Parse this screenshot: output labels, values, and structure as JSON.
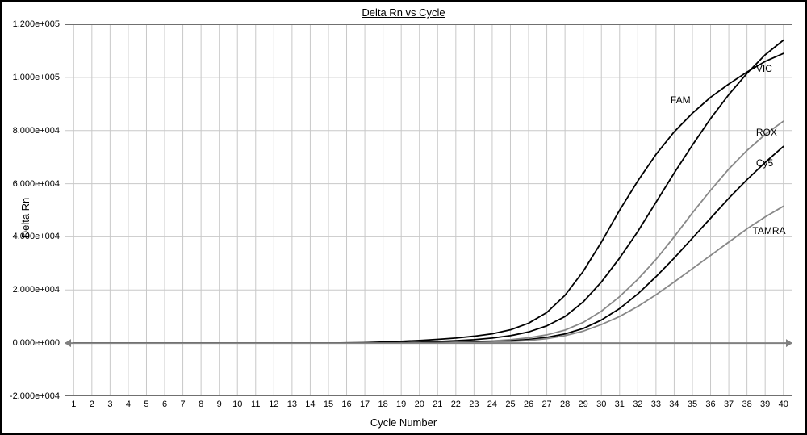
{
  "chart": {
    "type": "line",
    "title": "Delta Rn vs Cycle",
    "xlabel": "Cycle Number",
    "ylabel": "Delta Rn",
    "background_color": "#ffffff",
    "frame_color": "#000000",
    "frame_width": 2,
    "plot_border_color": "#707070",
    "grid_color": "#c8c8c8",
    "grid_width": 1,
    "zero_line_color": "#808080",
    "zero_line_width": 2,
    "tick_label_fontsize": 11,
    "axis_label_fontsize": 13,
    "title_fontsize": 13,
    "xlim": [
      0.5,
      40.5
    ],
    "ylim": [
      -20000,
      120000
    ],
    "xtick_step": 1,
    "xtick_labels": [
      "1",
      "2",
      "3",
      "4",
      "5",
      "6",
      "7",
      "8",
      "9",
      "10",
      "11",
      "12",
      "13",
      "14",
      "15",
      "16",
      "17",
      "18",
      "19",
      "20",
      "21",
      "22",
      "23",
      "24",
      "25",
      "26",
      "27",
      "28",
      "29",
      "30",
      "31",
      "32",
      "33",
      "34",
      "35",
      "36",
      "37",
      "38",
      "39",
      "40"
    ],
    "ytick_positions": [
      -20000,
      0,
      20000,
      40000,
      60000,
      80000,
      100000,
      120000
    ],
    "ytick_labels": [
      "-2.000e+004",
      "0.000e+000",
      "2.000e+004",
      "4.000e+004",
      "6.000e+004",
      "8.000e+004",
      "1.000e+005",
      "1.200e+005"
    ],
    "x_values": [
      1,
      2,
      3,
      4,
      5,
      6,
      7,
      8,
      9,
      10,
      11,
      12,
      13,
      14,
      15,
      16,
      17,
      18,
      19,
      20,
      21,
      22,
      23,
      24,
      25,
      26,
      27,
      28,
      29,
      30,
      31,
      32,
      33,
      34,
      35,
      36,
      37,
      38,
      39,
      40
    ],
    "series": [
      {
        "name": "FAM",
        "color": "#000000",
        "line_width": 1.8,
        "label_xy": [
          33.8,
          91000
        ],
        "y": [
          0,
          0,
          0,
          0,
          0,
          0,
          0,
          0,
          0,
          0,
          0,
          0,
          0,
          0,
          0,
          100,
          200,
          400,
          700,
          1000,
          1400,
          1900,
          2600,
          3500,
          5000,
          7500,
          11500,
          18000,
          27000,
          38000,
          50000,
          61000,
          71000,
          79500,
          86500,
          92500,
          97500,
          102000,
          106000,
          109000
        ]
      },
      {
        "name": "VIC",
        "color": "#000000",
        "line_width": 1.8,
        "label_xy": [
          38.5,
          103000
        ],
        "y": [
          0,
          0,
          0,
          0,
          0,
          0,
          0,
          0,
          0,
          0,
          0,
          0,
          0,
          0,
          0,
          0,
          0,
          100,
          200,
          350,
          600,
          900,
          1300,
          1900,
          2800,
          4200,
          6500,
          10000,
          15500,
          23000,
          32000,
          42000,
          53000,
          64000,
          74500,
          84500,
          93500,
          101500,
          108500,
          114000
        ]
      },
      {
        "name": "ROX",
        "color": "#888888",
        "line_width": 1.8,
        "label_xy": [
          38.5,
          79000
        ],
        "y": [
          0,
          0,
          0,
          0,
          0,
          0,
          0,
          0,
          0,
          0,
          0,
          0,
          0,
          0,
          0,
          0,
          0,
          0,
          0,
          100,
          200,
          350,
          550,
          850,
          1300,
          2000,
          3100,
          4900,
          7800,
          12000,
          17500,
          24000,
          31500,
          40000,
          49000,
          57500,
          65500,
          72500,
          78500,
          83500
        ]
      },
      {
        "name": "Cy5",
        "color": "#000000",
        "line_width": 1.8,
        "label_xy": [
          38.5,
          67500
        ],
        "y": [
          0,
          0,
          0,
          0,
          0,
          0,
          0,
          0,
          0,
          0,
          0,
          0,
          0,
          0,
          0,
          0,
          0,
          0,
          0,
          0,
          100,
          200,
          350,
          550,
          850,
          1350,
          2150,
          3450,
          5500,
          8700,
          13000,
          18500,
          25000,
          32000,
          39500,
          47000,
          54500,
          61500,
          68000,
          74000
        ]
      },
      {
        "name": "TAMRA",
        "color": "#888888",
        "line_width": 1.8,
        "label_xy": [
          38.3,
          42000
        ],
        "y": [
          0,
          0,
          0,
          0,
          0,
          0,
          0,
          0,
          0,
          0,
          0,
          0,
          0,
          0,
          0,
          0,
          0,
          0,
          0,
          0,
          0,
          100,
          200,
          350,
          600,
          1000,
          1700,
          2800,
          4500,
          7000,
          10000,
          13800,
          18200,
          23000,
          28000,
          33000,
          38000,
          43000,
          47500,
          51500
        ]
      }
    ],
    "zero_arrow_color": "#808080"
  }
}
